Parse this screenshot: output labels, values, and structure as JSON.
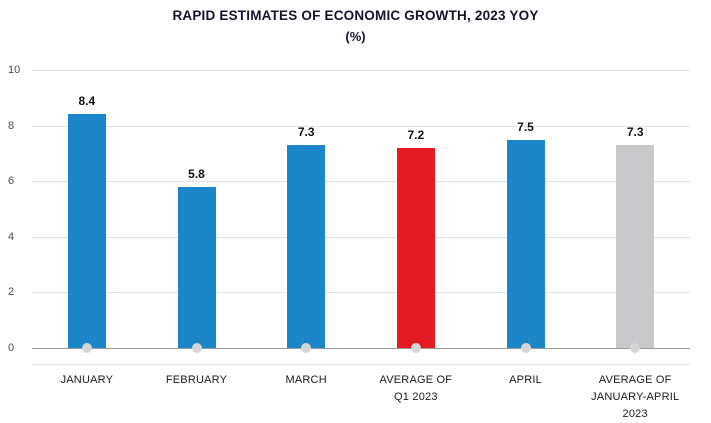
{
  "chart_data": {
    "type": "bar",
    "title": "RAPID ESTIMATES OF ECONOMIC GROWTH, 2023 YOY",
    "subtitle": "(%)",
    "categories": [
      [
        "JANUARY"
      ],
      [
        "FEBRUARY"
      ],
      [
        "MARCH"
      ],
      [
        "AVERAGE OF",
        "Q1 2023"
      ],
      [
        "APRIL"
      ],
      [
        "AVERAGE OF",
        "JANUARY-APRIL 2023"
      ]
    ],
    "values": [
      8.4,
      5.8,
      7.3,
      7.2,
      7.5,
      7.3
    ],
    "value_labels": [
      "8.4",
      "5.8",
      "7.3",
      "7.2",
      "7.5",
      "7.3"
    ],
    "bar_colors": [
      "#1b87c9",
      "#1b87c9",
      "#1b87c9",
      "#e41b23",
      "#1b87c9",
      "#c9c9cb"
    ],
    "ylim": [
      0,
      10
    ],
    "yticks": [
      0,
      2,
      4,
      6,
      8,
      10
    ],
    "grid": "on",
    "legend": "none",
    "xlabel": "",
    "ylabel": "",
    "colors": {
      "bar_blue": "#1b87c9",
      "bar_red": "#e41b23",
      "bar_gray": "#c9c9cb",
      "baseline": "#9a9a9a",
      "gridline": "#e3e3e3",
      "base_dot": "#d6d6d6",
      "title_text": "#14142b",
      "label_text": "#1a1a1a"
    }
  }
}
